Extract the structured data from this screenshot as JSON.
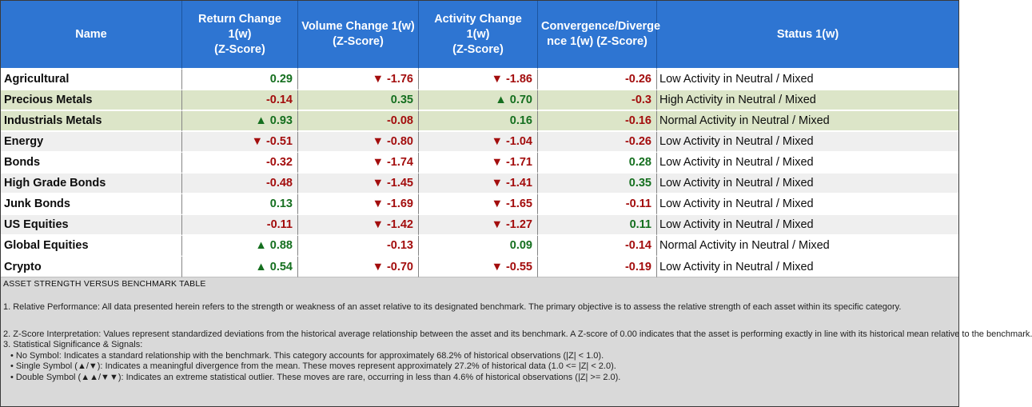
{
  "colors": {
    "header_bg": "#2e75d2",
    "header_divider": "#1c55a0",
    "positive_text": "#156f1f",
    "negative_text": "#a30d0d",
    "row_highlight_green": "#dce5c8",
    "row_highlight_gray": "#efefef",
    "footer_bg": "#d9d9d9"
  },
  "table": {
    "columns": [
      {
        "key": "name",
        "lines": [
          "Name"
        ]
      },
      {
        "key": "return",
        "lines": [
          "Return Change 1(w)",
          "(Z-Score)"
        ]
      },
      {
        "key": "volume",
        "lines": [
          "Volume Change 1(w)",
          "(Z-Score)"
        ]
      },
      {
        "key": "activity",
        "lines": [
          "Activity Change 1(w)",
          "(Z-Score)"
        ]
      },
      {
        "key": "convergence",
        "lines": [
          "Convergence/Diverge",
          "nce 1(w) (Z-Score)"
        ]
      },
      {
        "key": "status",
        "lines": [
          "Status 1(w)"
        ]
      }
    ],
    "rows": [
      {
        "name": "Agricultural",
        "bg": "white",
        "return": {
          "text": "0.29",
          "tone": "pos"
        },
        "volume": {
          "text": "▼ -1.76",
          "tone": "neg"
        },
        "activity": {
          "text": "▼ -1.86",
          "tone": "neg"
        },
        "convergence": {
          "text": "-0.26",
          "tone": "neg"
        },
        "status": "Low Activity in Neutral / Mixed"
      },
      {
        "name": "Precious Metals",
        "bg": "green",
        "return": {
          "text": "-0.14",
          "tone": "neg"
        },
        "volume": {
          "text": "0.35",
          "tone": "pos"
        },
        "activity": {
          "text": "▲ 0.70",
          "tone": "pos"
        },
        "convergence": {
          "text": "-0.3",
          "tone": "neg"
        },
        "status": "High Activity in Neutral / Mixed"
      },
      {
        "name": "Industrials Metals",
        "bg": "green",
        "return": {
          "text": "▲ 0.93",
          "tone": "pos"
        },
        "volume": {
          "text": "-0.08",
          "tone": "neg"
        },
        "activity": {
          "text": "0.16",
          "tone": "pos"
        },
        "convergence": {
          "text": "-0.16",
          "tone": "neg"
        },
        "status": "Normal Activity in Neutral / Mixed"
      },
      {
        "name": "Energy",
        "bg": "gray",
        "return": {
          "text": "▼ -0.51",
          "tone": "neg"
        },
        "volume": {
          "text": "▼ -0.80",
          "tone": "neg"
        },
        "activity": {
          "text": "▼ -1.04",
          "tone": "neg"
        },
        "convergence": {
          "text": "-0.26",
          "tone": "neg"
        },
        "status": "Low Activity in Neutral / Mixed"
      },
      {
        "name": "Bonds",
        "bg": "white",
        "return": {
          "text": "-0.32",
          "tone": "neg"
        },
        "volume": {
          "text": "▼ -1.74",
          "tone": "neg"
        },
        "activity": {
          "text": "▼ -1.71",
          "tone": "neg"
        },
        "convergence": {
          "text": "0.28",
          "tone": "pos"
        },
        "status": "Low Activity in Neutral / Mixed"
      },
      {
        "name": "High Grade Bonds",
        "bg": "gray",
        "return": {
          "text": "-0.48",
          "tone": "neg"
        },
        "volume": {
          "text": "▼ -1.45",
          "tone": "neg"
        },
        "activity": {
          "text": "▼ -1.41",
          "tone": "neg"
        },
        "convergence": {
          "text": "0.35",
          "tone": "pos"
        },
        "status": "Low Activity in Neutral / Mixed"
      },
      {
        "name": "Junk Bonds",
        "bg": "white",
        "return": {
          "text": "0.13",
          "tone": "pos"
        },
        "volume": {
          "text": "▼ -1.69",
          "tone": "neg"
        },
        "activity": {
          "text": "▼ -1.65",
          "tone": "neg"
        },
        "convergence": {
          "text": "-0.11",
          "tone": "neg"
        },
        "status": "Low Activity in Neutral / Mixed"
      },
      {
        "name": "US Equities",
        "bg": "gray",
        "return": {
          "text": "-0.11",
          "tone": "neg"
        },
        "volume": {
          "text": "▼ -1.42",
          "tone": "neg"
        },
        "activity": {
          "text": "▼ -1.27",
          "tone": "neg"
        },
        "convergence": {
          "text": "0.11",
          "tone": "pos"
        },
        "status": "Low Activity in Neutral / Mixed"
      },
      {
        "name": "Global Equities",
        "bg": "white",
        "return": {
          "text": "▲ 0.88",
          "tone": "pos"
        },
        "volume": {
          "text": "-0.13",
          "tone": "neg"
        },
        "activity": {
          "text": "0.09",
          "tone": "pos"
        },
        "convergence": {
          "text": "-0.14",
          "tone": "neg"
        },
        "status": "Normal Activity in Neutral / Mixed"
      },
      {
        "name": "Crypto",
        "bg": "white",
        "return": {
          "text": "▲ 0.54",
          "tone": "pos"
        },
        "volume": {
          "text": "▼ -0.70",
          "tone": "neg"
        },
        "activity": {
          "text": "▼ -0.55",
          "tone": "neg"
        },
        "convergence": {
          "text": "-0.19",
          "tone": "neg"
        },
        "status": "Low Activity in Neutral / Mixed"
      }
    ]
  },
  "footer": {
    "title": "ASSET STRENGTH VERSUS BENCHMARK TABLE",
    "notes": [
      "1. Relative Performance: All data presented herein refers to the strength or weakness of an asset relative to its designated benchmark. The primary objective is to assess the relative strength of each asset within its specific category.",
      "2. Z-Score Interpretation: Values represent standardized deviations from the historical average relationship between the asset and its benchmark. A Z-score of 0.00 indicates that the asset is performing exactly in line with its historical mean relative to the benchmark.",
      "3. Statistical Significance & Signals:"
    ],
    "bullets": [
      "• No Symbol: Indicates a standard relationship with the benchmark. This category accounts for approximately 68.2% of historical observations (|Z| < 1.0).",
      "• Single Symbol (▲/▼): Indicates a meaningful divergence from the mean. These moves represent approximately 27.2% of historical data (1.0 <= |Z| < 2.0).",
      "• Double Symbol (▲▲/▼▼): Indicates an extreme statistical outlier. These moves are rare, occurring in less than 4.6% of historical observations (|Z| >= 2.0)."
    ]
  }
}
